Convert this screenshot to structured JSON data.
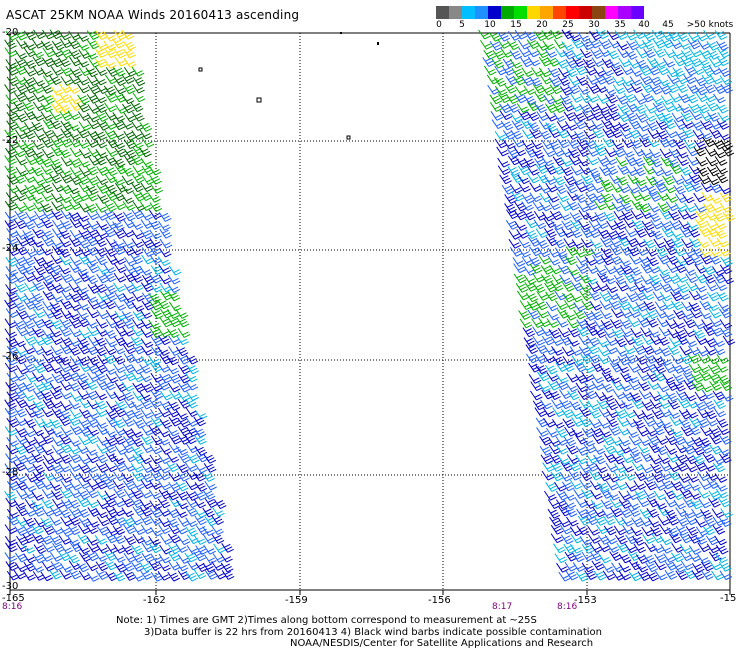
{
  "title": "ASCAT 25KM NOAA Winds 20160413 ascending",
  "legend": {
    "colors": [
      "#555555",
      "#888888",
      "#00bfff",
      "#1e90ff",
      "#0000cd",
      "#00aa00",
      "#00dd00",
      "#ffd700",
      "#ffa500",
      "#ff4500",
      "#ff0000",
      "#cc0000",
      "#8b4513",
      "#ff00ff",
      "#aa00ff",
      "#6a00ff"
    ],
    "labels": [
      "0",
      "5",
      "10",
      "15",
      "20",
      "25",
      "30",
      "35",
      "40",
      "45",
      ">50 knots"
    ]
  },
  "axes": {
    "lon_ticks": [
      "-165",
      "-162",
      "-159",
      "-156",
      "-153",
      "-15"
    ],
    "lat_ticks": [
      "-20",
      "-22",
      "-24",
      "-26",
      "-28",
      "-30"
    ]
  },
  "pass_times": [
    "8:16",
    "8:17",
    "8:16"
  ],
  "notes": [
    "Note: 1) Times are GMT 2)Times along bottom correspond to measurement at ~25S",
    "3)Data buffer is 22 hrs from 20160413 4) Black wind barbs indicate possible contamination",
    "NOAA/NESDIS/Center for Satellite Applications and Research"
  ],
  "wind_colors": {
    "dark_blue": "#0000cc",
    "blue": "#1e5fff",
    "cyan": "#00b4e6",
    "green": "#00b000",
    "dark_green": "#006400",
    "yellow": "#ffdc00",
    "black": "#000000"
  }
}
